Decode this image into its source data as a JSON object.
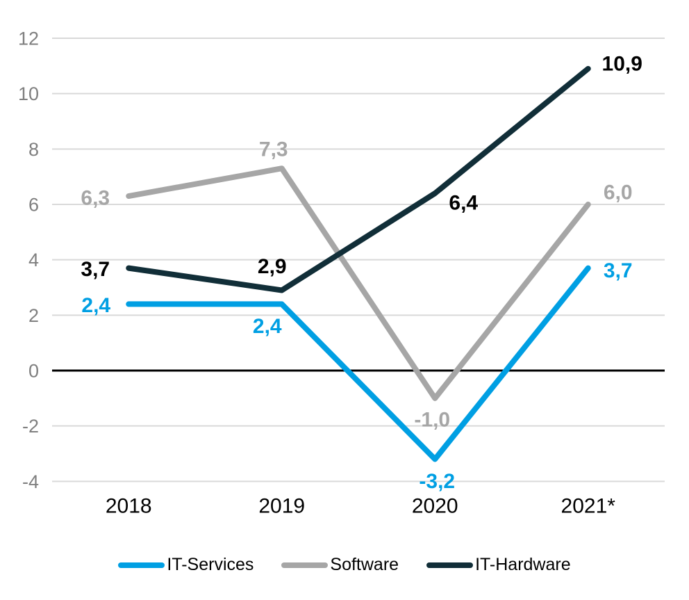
{
  "chart_data": {
    "type": "line",
    "title": "",
    "xlabel": "",
    "ylabel": "",
    "categories": [
      "2018",
      "2019",
      "2020",
      "2021*"
    ],
    "series": [
      {
        "name": "IT-Services",
        "color": "#009FE3",
        "values": [
          2.4,
          2.4,
          -3.2,
          3.7
        ],
        "point_labels": [
          "2,4",
          "2,4",
          "-3,2",
          "3,7"
        ],
        "label_offsets": [
          [
            -47,
            1
          ],
          [
            -21,
            31
          ],
          [
            3,
            31
          ],
          [
            43,
            3
          ]
        ]
      },
      {
        "name": "Software",
        "color": "#A6A6A6",
        "values": [
          6.3,
          7.3,
          -1.0,
          6.0
        ],
        "point_labels": [
          "6,3",
          "7,3",
          "-1,0",
          "6,0"
        ],
        "label_offsets": [
          [
            -48,
            2
          ],
          [
            -12,
            -28
          ],
          [
            -4,
            30
          ],
          [
            43,
            -18
          ]
        ]
      },
      {
        "name": "IT-Hardware",
        "color": "#112E38",
        "label_color": "#000000",
        "values": [
          3.7,
          2.9,
          6.4,
          10.9
        ],
        "point_labels": [
          "3,7",
          "2,9",
          "6,4",
          "10,9"
        ],
        "label_offsets": [
          [
            -48,
            1
          ],
          [
            -14,
            -35
          ],
          [
            41,
            13
          ],
          [
            49,
            -8
          ]
        ]
      }
    ],
    "ylim": [
      -4,
      12
    ],
    "y_ticks": [
      12,
      10,
      8,
      6,
      4,
      2,
      0,
      -2,
      -4
    ],
    "grid": true,
    "legend_position": "bottom",
    "decimal_style": "comma",
    "axis_colors": {
      "grid": "#D9D9D9",
      "zero_line": "#000000",
      "tick_text": "#7F7F7F",
      "category_text": "#000000"
    }
  }
}
